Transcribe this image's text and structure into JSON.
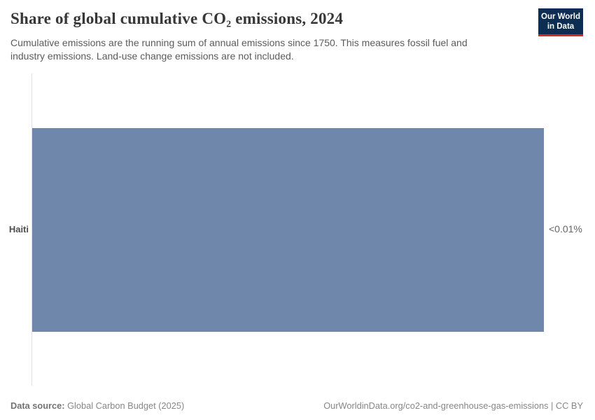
{
  "header": {
    "title": "Share of global cumulative CO₂ emissions, 2024",
    "subtitle": "Cumulative emissions are the running sum of annual emissions since 1750. This measures fossil fuel and industry emissions. Land-use change emissions are not included.",
    "logo": {
      "line1": "Our World",
      "line2": "in Data"
    }
  },
  "chart_data": {
    "type": "bar",
    "orientation": "horizontal",
    "title": "Share of global cumulative CO₂ emissions, 2024",
    "categories": [
      "Haiti"
    ],
    "values": [
      0.01
    ],
    "value_display": [
      "<0.01%"
    ],
    "values_note": "displayed as an upper bound: less than 0.01%",
    "unit": "%",
    "xlabel": "",
    "ylabel": "",
    "grid": false,
    "legend": "none",
    "bar_color": "#6e87ab"
  },
  "footer": {
    "datasource_label": "Data source:",
    "datasource_value": " Global Carbon Budget (2025)",
    "attribution": "OurWorldinData.org/co2-and-greenhouse-gas-emissions | CC BY"
  },
  "colors": {
    "bar": "#6e87ab",
    "logo_background": "#0d2e52",
    "logo_stripe": "#d42b21",
    "axis_line": "#e2e2e2",
    "title_text": "#373737",
    "subtitle_text": "#5b5b5b",
    "footer_text": "#878787"
  }
}
